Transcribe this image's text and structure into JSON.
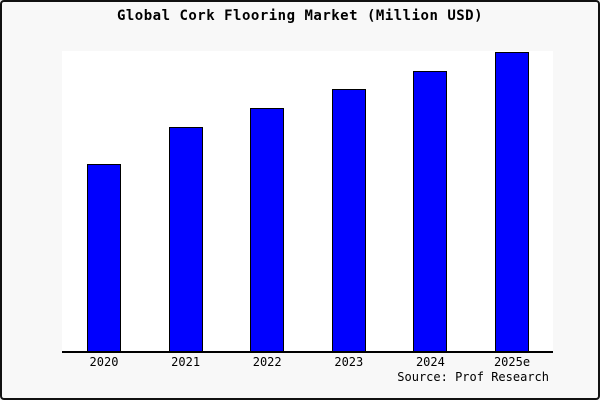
{
  "window": {
    "background_color": "#f8f8f8",
    "border_color": "#111111"
  },
  "chart_data": {
    "type": "bar",
    "title": "Global Cork Flooring Market (Million USD)",
    "xlabel": "",
    "ylabel": "",
    "categories": [
      "2020",
      "2021",
      "2022",
      "2023",
      "2024",
      "2025e"
    ],
    "values": [
      187,
      224,
      243,
      262,
      280,
      299
    ],
    "value_note": "no y-axis scale shown in chart; values are relative bar heights (pixel-estimated)",
    "ylim": [
      0,
      300
    ],
    "grid": false,
    "legend_position": "none",
    "bar_color": "#0000fe",
    "bar_border_color": "#000000",
    "axis_color": "#000000",
    "plot_background": "#ffffff"
  },
  "footer": {
    "source_label": "Source: Prof Research"
  }
}
